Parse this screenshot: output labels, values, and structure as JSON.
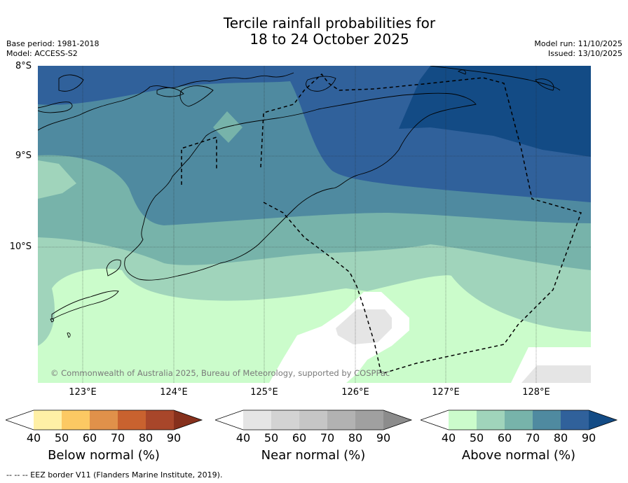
{
  "title": {
    "line1": "Tercile rainfall probabilities for",
    "line2": "18 to 24 October 2025"
  },
  "meta_left": {
    "base_period": "Base period: 1981-2018",
    "model": "Model: ACCESS-S2"
  },
  "meta_right": {
    "model_run": "Model run: 11/10/2025",
    "issued": "Issued: 13/10/2025"
  },
  "map": {
    "lat_labels": [
      "8°S",
      "9°S",
      "10°S"
    ],
    "lon_labels": [
      "123°E",
      "124°E",
      "125°E",
      "126°E",
      "127°E",
      "128°E"
    ],
    "copyright": "© Commonwealth of Australia 2025, Bureau of Meteorology, supported by COSPPac",
    "dominant_category": "Above normal"
  },
  "colorbars": [
    {
      "name": "below",
      "label": "Below normal (%)",
      "ticks": [
        "40",
        "50",
        "60",
        "70",
        "80",
        "90"
      ],
      "colors": [
        "#ffffff",
        "#fff0a6",
        "#fcc963",
        "#e0914a",
        "#c9622f",
        "#a8462a",
        "#86301c"
      ]
    },
    {
      "name": "near",
      "label": "Near normal (%)",
      "ticks": [
        "40",
        "50",
        "60",
        "70",
        "80",
        "90"
      ],
      "colors": [
        "#ffffff",
        "#e5e5e5",
        "#d3d3d3",
        "#c6c6c6",
        "#b2b2b2",
        "#a0a0a0",
        "#8c8c8c"
      ]
    },
    {
      "name": "above",
      "label": "Above normal (%)",
      "ticks": [
        "40",
        "50",
        "60",
        "70",
        "80",
        "90"
      ],
      "colors": [
        "#ffffff",
        "#cbfccb",
        "#a0d4bb",
        "#77b3aa",
        "#4f8aa0",
        "#30619b",
        "#134b85"
      ]
    }
  ],
  "footer": "--  --  -- EEZ border V11 (Flanders Marine Institute, 2019)."
}
